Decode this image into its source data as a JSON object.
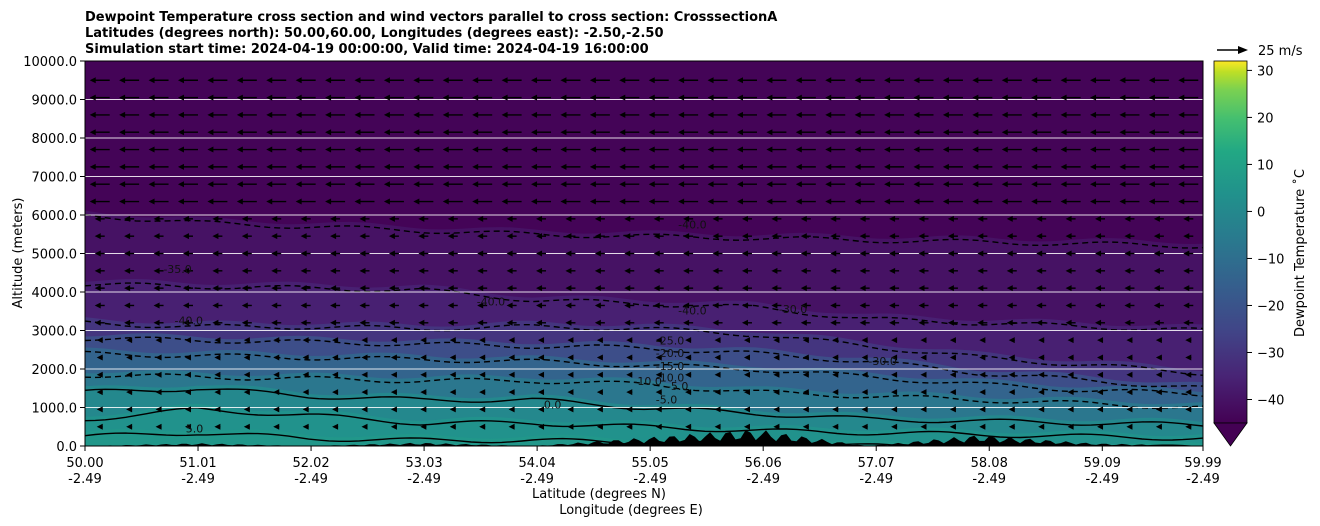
{
  "title": {
    "line1": "Dewpoint Temperature cross section and wind vectors parallel to cross section: CrosssectionA",
    "line2": "Latitudes (degrees north): 50.00,60.00, Longitudes (degrees east): -2.50,-2.50",
    "line3": "Simulation start time: 2024-04-19 00:00:00, Valid time: 2024-04-19 16:00:00"
  },
  "chart_data": {
    "type": "heatmap",
    "subtype": "filled-contour cross section with wind vectors",
    "ylabel": "Altitude (meters)",
    "xlabel_line1": "Latitude (degrees N)",
    "xlabel_line2": "Longitude (degrees E)",
    "xlim": [
      50.0,
      59.99
    ],
    "ylim": [
      0.0,
      10000.0
    ],
    "x_ticks": [
      {
        "lat": "50.00",
        "lon": "-2.49",
        "value": 50.0
      },
      {
        "lat": "51.01",
        "lon": "-2.49",
        "value": 51.01
      },
      {
        "lat": "52.02",
        "lon": "-2.49",
        "value": 52.02
      },
      {
        "lat": "53.03",
        "lon": "-2.49",
        "value": 53.03
      },
      {
        "lat": "54.04",
        "lon": "-2.49",
        "value": 54.04
      },
      {
        "lat": "55.05",
        "lon": "-2.49",
        "value": 55.05
      },
      {
        "lat": "56.06",
        "lon": "-2.49",
        "value": 56.06
      },
      {
        "lat": "57.07",
        "lon": "-2.49",
        "value": 57.07
      },
      {
        "lat": "58.08",
        "lon": "-2.49",
        "value": 58.08
      },
      {
        "lat": "59.09",
        "lon": "-2.49",
        "value": 59.09
      },
      {
        "lat": "59.99",
        "lon": "-2.49",
        "value": 59.99
      }
    ],
    "y_ticks": [
      "0.0",
      "1000.0",
      "2000.0",
      "3000.0",
      "4000.0",
      "5000.0",
      "6000.0",
      "7000.0",
      "8000.0",
      "9000.0",
      "10000.0"
    ],
    "y_tick_values": [
      0,
      1000,
      2000,
      3000,
      4000,
      5000,
      6000,
      7000,
      8000,
      9000,
      10000
    ],
    "grid_y": true,
    "colorbar": {
      "label": "Dewpoint Temperature ˚C",
      "range": [
        -45,
        32
      ],
      "ticks": [
        "30",
        "20",
        "10",
        "0",
        "−10",
        "−20",
        "−30",
        "−40"
      ],
      "tick_values": [
        30,
        20,
        10,
        0,
        -10,
        -20,
        -30,
        -40
      ],
      "extend": "min",
      "colormap": "viridis"
    },
    "quiver_key": {
      "label": "25 m/s",
      "speed_ms": 25
    },
    "wind_direction": "toward lower latitude (southward) aloft",
    "contour_levels": [
      -40,
      -35,
      -30,
      -25,
      -20,
      -15,
      -10,
      -5,
      0,
      5
    ],
    "contour_labels": [
      "-40.0",
      "-35.0",
      "-40.0",
      "-40.0",
      "-25.0",
      "-20.0",
      "-15.0",
      "-10.0",
      "-10.0",
      "-5.0",
      "-5.0",
      "0.0",
      "5.0",
      "-30.0",
      "-30.0",
      "-40.0"
    ],
    "layers": [
      {
        "dewpoint_c": -44,
        "top_m": [
          10000,
          10000,
          10000,
          10000,
          10000,
          10000,
          10000,
          10000,
          10000,
          10000,
          10000
        ]
      },
      {
        "dewpoint_c": -40,
        "top_m": [
          6100,
          5900,
          5800,
          5700,
          5600,
          5550,
          5500,
          5450,
          5400,
          5350,
          5300
        ]
      },
      {
        "dewpoint_c": -36,
        "top_m": [
          4300,
          4250,
          4200,
          4150,
          3900,
          3800,
          3700,
          3400,
          3300,
          3200,
          3100
        ]
      },
      {
        "dewpoint_c": -30,
        "top_m": [
          3300,
          3200,
          3200,
          3150,
          3200,
          3150,
          3000,
          2700,
          2400,
          2200,
          2000
        ]
      },
      {
        "dewpoint_c": -22,
        "top_m": [
          2900,
          2850,
          2800,
          2750,
          2700,
          2650,
          2500,
          2300,
          2000,
          1800,
          1600
        ]
      },
      {
        "dewpoint_c": -14,
        "top_m": [
          2500,
          2450,
          2400,
          2350,
          2300,
          2200,
          2100,
          1900,
          1700,
          1550,
          1450
        ]
      },
      {
        "dewpoint_c": -7,
        "top_m": [
          1950,
          1900,
          1850,
          1800,
          1800,
          1700,
          1500,
          1400,
          1300,
          1200,
          1100
        ]
      },
      {
        "dewpoint_c": 0,
        "top_m": [
          1500,
          1600,
          1400,
          1300,
          1300,
          1100,
          950,
          800,
          750,
          700,
          650
        ]
      },
      {
        "dewpoint_c": 4,
        "top_m": [
          800,
          1050,
          900,
          700,
          700,
          600,
          500,
          450,
          400,
          350,
          300
        ]
      },
      {
        "dewpoint_c": 6,
        "top_m": [
          350,
          450,
          300,
          250,
          250,
          200,
          150,
          100,
          100,
          80,
          60
        ]
      }
    ],
    "terrain_m": [
      0,
      50,
      0,
      60,
      0,
      150,
      300,
      0,
      200,
      50,
      0
    ],
    "colors": {
      "plot_background": "#440154",
      "terrain": "#000000",
      "grid": "#ffffff",
      "contour": "#000000"
    }
  }
}
